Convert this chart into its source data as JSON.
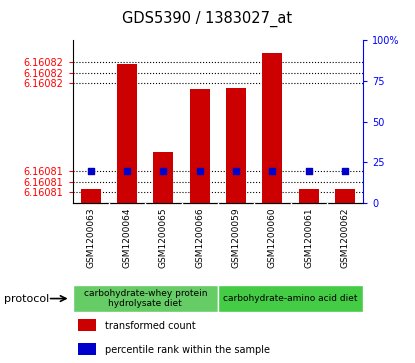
{
  "title": "GDS5390 / 1383027_at",
  "samples": [
    "GSM1200063",
    "GSM1200064",
    "GSM1200065",
    "GSM1200066",
    "GSM1200059",
    "GSM1200060",
    "GSM1200061",
    "GSM1200062"
  ],
  "transformed_counts": [
    6.1608103,
    6.1608218,
    6.1608137,
    6.1608195,
    6.1608196,
    6.1608228,
    6.1608103,
    6.1608103
  ],
  "ylim_min": 6.160809,
  "ylim_max": 6.160824,
  "ytick_positions": [
    6.16081,
    6.160811,
    6.160812,
    6.16082,
    6.160821,
    6.160822
  ],
  "ytick_labels": [
    "6.16081",
    "6.16081",
    "6.16081",
    "6.16082",
    "6.16082",
    "6.16082"
  ],
  "bar_color": "#cc0000",
  "dot_color": "#0000cc",
  "gray_bg": "#c8c8c8",
  "green1": "#66cc66",
  "green2": "#44cc44",
  "right_pct_ticks": [
    0,
    25,
    50,
    75,
    100
  ],
  "right_pct_labels": [
    "0",
    "25",
    "50",
    "75",
    "100%"
  ],
  "percentile_rank": 20,
  "group1_label": "carbohydrate-whey protein\nhydrolysate diet",
  "group1_samples": 4,
  "group2_label": "carbohydrate-amino acid diet",
  "group2_samples": 4,
  "legend_label1": "transformed count",
  "legend_label2": "percentile rank within the sample",
  "protocol_label": "protocol"
}
